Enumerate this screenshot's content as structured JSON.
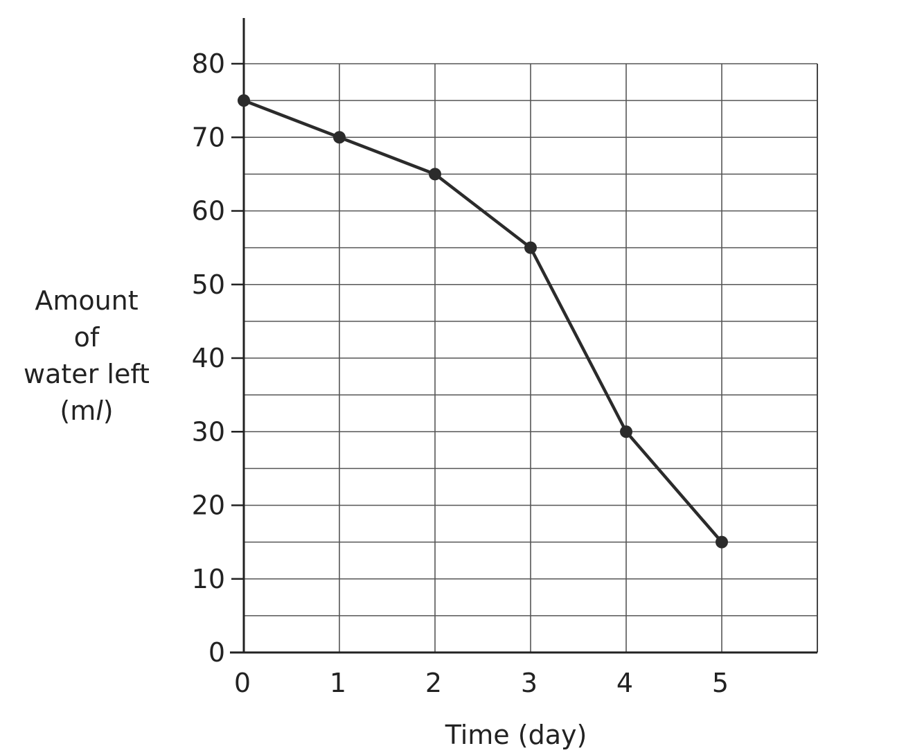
{
  "chart_data": {
    "type": "line",
    "xlabel": "Time (day)",
    "ylabel_lines": [
      "Amount",
      "of",
      "water left"
    ],
    "ylabel_unit_prefix": "(m",
    "ylabel_unit_italic": "l",
    "ylabel_unit_suffix": ")",
    "x": [
      0,
      1,
      2,
      3,
      4,
      5
    ],
    "y": [
      75,
      70,
      65,
      55,
      30,
      15
    ],
    "xticks": [
      "0",
      "1",
      "2",
      "3",
      "4",
      "5"
    ],
    "yticks": [
      "0",
      "10",
      "20",
      "30",
      "40",
      "50",
      "60",
      "70",
      "80"
    ],
    "xlim": [
      0,
      6
    ],
    "ylim": [
      0,
      80
    ],
    "grid": true,
    "line_color": "#2b2b2b"
  }
}
